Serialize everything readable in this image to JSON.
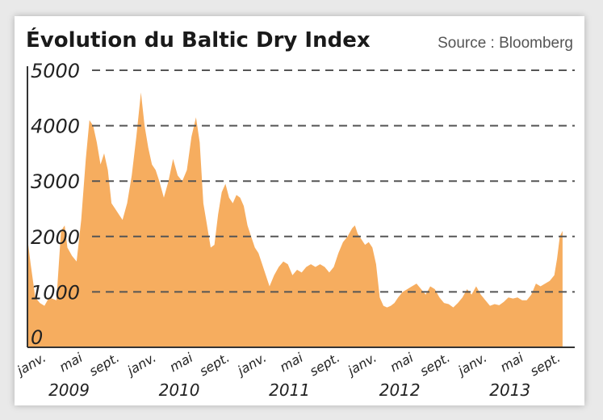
{
  "chart_data": {
    "type": "area",
    "title": "Évolution du Baltic Dry Index",
    "source": "Source : Bloomberg",
    "xlabel": "",
    "ylabel": "",
    "ylim": [
      0,
      5000
    ],
    "y_ticks": [
      0,
      1000,
      2000,
      3000,
      4000,
      5000
    ],
    "y_tick_labels": [
      "0",
      "1000",
      "2000",
      "3000",
      "4000",
      "5000"
    ],
    "grid": "horizontal-dashed",
    "color": "#f6ad5f",
    "x_ticks": [
      {
        "t": 0.0,
        "label": "janv."
      },
      {
        "t": 4.0,
        "label": "mai"
      },
      {
        "t": 8.0,
        "label": "sept."
      },
      {
        "t": 12.0,
        "label": "janv."
      },
      {
        "t": 16.0,
        "label": "mai"
      },
      {
        "t": 20.0,
        "label": "sept."
      },
      {
        "t": 24.0,
        "label": "janv."
      },
      {
        "t": 28.0,
        "label": "mai"
      },
      {
        "t": 32.0,
        "label": "sept."
      },
      {
        "t": 36.0,
        "label": "janv."
      },
      {
        "t": 40.0,
        "label": "mai"
      },
      {
        "t": 44.0,
        "label": "sept."
      },
      {
        "t": 48.0,
        "label": "janv."
      },
      {
        "t": 52.0,
        "label": "mai"
      },
      {
        "t": 56.0,
        "label": "sept."
      }
    ],
    "years": [
      {
        "t": 4.0,
        "label": "2009"
      },
      {
        "t": 16.0,
        "label": "2010"
      },
      {
        "t": 28.0,
        "label": "2011"
      },
      {
        "t": 40.0,
        "label": "2012"
      },
      {
        "t": 52.0,
        "label": "2013"
      }
    ],
    "series": [
      {
        "values": [
          [
            -0.3,
            1900
          ],
          [
            0.0,
            1500
          ],
          [
            0.5,
            900
          ],
          [
            1.0,
            800
          ],
          [
            1.5,
            750
          ],
          [
            2.0,
            900
          ],
          [
            2.8,
            850
          ],
          [
            3.3,
            2100
          ],
          [
            3.7,
            2200
          ],
          [
            4.0,
            1800
          ],
          [
            4.5,
            1650
          ],
          [
            5.0,
            1550
          ],
          [
            5.5,
            2300
          ],
          [
            6.0,
            3400
          ],
          [
            6.4,
            4100
          ],
          [
            6.8,
            4000
          ],
          [
            7.2,
            3700
          ],
          [
            7.6,
            3300
          ],
          [
            8.0,
            3500
          ],
          [
            8.4,
            3200
          ],
          [
            8.8,
            2600
          ],
          [
            9.2,
            2500
          ],
          [
            9.6,
            2400
          ],
          [
            10.0,
            2300
          ],
          [
            10.5,
            2600
          ],
          [
            11.0,
            3100
          ],
          [
            11.5,
            3800
          ],
          [
            12.0,
            4600
          ],
          [
            12.4,
            4000
          ],
          [
            12.8,
            3600
          ],
          [
            13.2,
            3300
          ],
          [
            13.6,
            3200
          ],
          [
            14.0,
            3000
          ],
          [
            14.5,
            2700
          ],
          [
            15.0,
            3000
          ],
          [
            15.5,
            3400
          ],
          [
            16.0,
            3100
          ],
          [
            16.5,
            3000
          ],
          [
            17.0,
            3200
          ],
          [
            17.5,
            3800
          ],
          [
            18.0,
            4150
          ],
          [
            18.4,
            3700
          ],
          [
            18.8,
            2600
          ],
          [
            19.2,
            2200
          ],
          [
            19.6,
            1800
          ],
          [
            20.0,
            1850
          ],
          [
            20.4,
            2400
          ],
          [
            20.8,
            2800
          ],
          [
            21.2,
            2950
          ],
          [
            21.6,
            2700
          ],
          [
            22.0,
            2600
          ],
          [
            22.4,
            2750
          ],
          [
            22.8,
            2700
          ],
          [
            23.2,
            2550
          ],
          [
            23.6,
            2200
          ],
          [
            24.0,
            2000
          ],
          [
            24.4,
            1800
          ],
          [
            24.8,
            1700
          ],
          [
            25.2,
            1500
          ],
          [
            25.6,
            1300
          ],
          [
            26.0,
            1100
          ],
          [
            26.5,
            1300
          ],
          [
            27.0,
            1450
          ],
          [
            27.5,
            1550
          ],
          [
            28.0,
            1500
          ],
          [
            28.5,
            1300
          ],
          [
            29.0,
            1400
          ],
          [
            29.5,
            1350
          ],
          [
            30.0,
            1450
          ],
          [
            30.5,
            1500
          ],
          [
            31.0,
            1450
          ],
          [
            31.5,
            1500
          ],
          [
            32.0,
            1450
          ],
          [
            32.5,
            1350
          ],
          [
            33.0,
            1450
          ],
          [
            33.5,
            1700
          ],
          [
            34.0,
            1900
          ],
          [
            34.5,
            2000
          ],
          [
            35.0,
            2150
          ],
          [
            35.3,
            2200
          ],
          [
            35.6,
            2050
          ],
          [
            36.0,
            1950
          ],
          [
            36.4,
            1850
          ],
          [
            36.8,
            1900
          ],
          [
            37.2,
            1800
          ],
          [
            37.6,
            1500
          ],
          [
            38.0,
            900
          ],
          [
            38.4,
            750
          ],
          [
            38.8,
            720
          ],
          [
            39.2,
            750
          ],
          [
            39.6,
            800
          ],
          [
            40.0,
            900
          ],
          [
            40.5,
            1000
          ],
          [
            41.0,
            1050
          ],
          [
            41.5,
            1100
          ],
          [
            42.0,
            1150
          ],
          [
            42.5,
            1050
          ],
          [
            43.0,
            950
          ],
          [
            43.5,
            1100
          ],
          [
            44.0,
            1050
          ],
          [
            44.5,
            900
          ],
          [
            45.0,
            800
          ],
          [
            45.5,
            780
          ],
          [
            46.0,
            720
          ],
          [
            46.5,
            800
          ],
          [
            47.0,
            900
          ],
          [
            47.5,
            1050
          ],
          [
            48.0,
            950
          ],
          [
            48.5,
            1100
          ],
          [
            49.0,
            950
          ],
          [
            49.5,
            850
          ],
          [
            50.0,
            750
          ],
          [
            50.5,
            780
          ],
          [
            51.0,
            760
          ],
          [
            51.5,
            820
          ],
          [
            52.0,
            900
          ],
          [
            52.5,
            880
          ],
          [
            53.0,
            900
          ],
          [
            53.5,
            850
          ],
          [
            54.0,
            850
          ],
          [
            54.5,
            950
          ],
          [
            55.0,
            1150
          ],
          [
            55.5,
            1100
          ],
          [
            56.0,
            1150
          ],
          [
            56.5,
            1200
          ],
          [
            57.0,
            1300
          ],
          [
            57.3,
            1600
          ],
          [
            57.6,
            2000
          ],
          [
            57.9,
            2100
          ]
        ]
      }
    ]
  }
}
